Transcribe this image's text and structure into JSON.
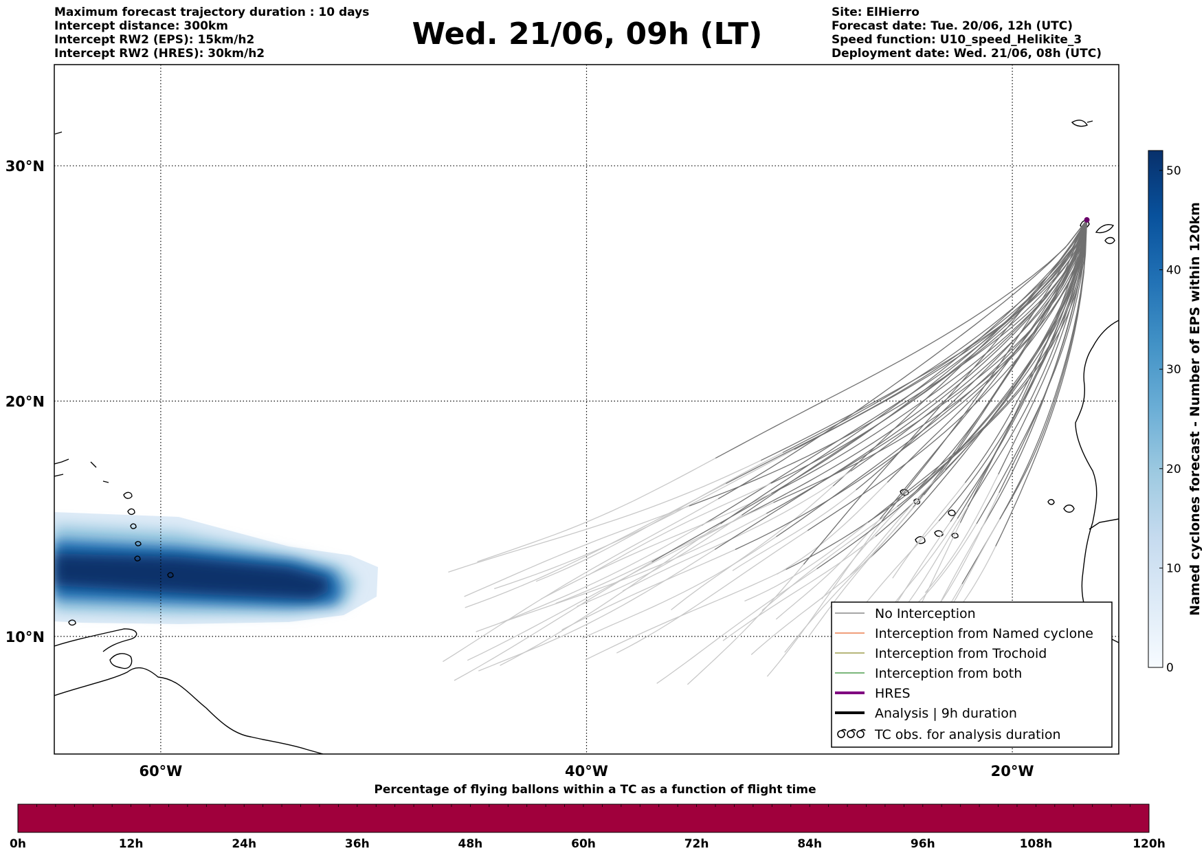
{
  "header": {
    "left_lines": [
      "Maximum forecast trajectory duration : 10 days",
      "Intercept distance: 300km",
      "Intercept RW2 (EPS):  15km/h2",
      "Intercept RW2 (HRES): 30km/h2"
    ],
    "title": "Wed. 21/06, 09h (LT)",
    "right_lines": [
      "Site: ElHierro",
      "Forecast date: Tue. 20/06, 12h (UTC)",
      "Speed function: U10_speed_Helikite_3",
      "Deployment date: Wed. 21/06, 08h (UTC)"
    ]
  },
  "map": {
    "lon_range": [
      -65,
      -15
    ],
    "lat_range": [
      5,
      34.3
    ],
    "lat_labels": [
      {
        "lat": 30,
        "text": "30°N"
      },
      {
        "lat": 20,
        "text": "20°N"
      },
      {
        "lat": 10,
        "text": "10°N"
      }
    ],
    "lon_labels": [
      {
        "lon": -60,
        "text": "60°W"
      },
      {
        "lon": -40,
        "text": "40°W"
      },
      {
        "lon": -20,
        "text": "20°W"
      }
    ],
    "site": {
      "lon": -16.5,
      "lat": 27.7
    },
    "colors": {
      "no_interception_dark": "#707070",
      "no_interception_light": "#c8c8c8",
      "named_cyclone": "#e8632a",
      "trochoid": "#8a8a2a",
      "both": "#2a8a2a",
      "hres": "#800080",
      "analysis": "#000000"
    }
  },
  "colorbar": {
    "label": "Named cyclones forecast - Number of EPS within 120km",
    "min": 0,
    "max": 52,
    "ticks": [
      "0",
      "10",
      "20",
      "30",
      "40",
      "50"
    ],
    "colors": [
      "#f7fbff",
      "#deebf7",
      "#c6dbef",
      "#9ecae1",
      "#6baed6",
      "#4292c6",
      "#2171b5",
      "#08519c",
      "#08306b"
    ]
  },
  "legend": {
    "items": [
      {
        "label": "No Interception",
        "color": "#707070",
        "width": 1.2,
        "kind": "line"
      },
      {
        "label": "Interception from Named cyclone",
        "color": "#e8632a",
        "width": 1.2,
        "kind": "line"
      },
      {
        "label": "Interception from Trochoid",
        "color": "#8a8a2a",
        "width": 1.2,
        "kind": "line"
      },
      {
        "label": "Interception from both",
        "color": "#2a8a2a",
        "width": 1.2,
        "kind": "line"
      },
      {
        "label": "HRES",
        "color": "#800080",
        "width": 4,
        "kind": "line"
      },
      {
        "label": "Analysis | 9h duration",
        "color": "#000000",
        "width": 4,
        "kind": "line"
      },
      {
        "label": "TC obs. for analysis duration",
        "color": "#000000",
        "width": 1,
        "kind": "tc"
      }
    ]
  },
  "bottom_bar": {
    "title": "Percentage of flying ballons within a TC as a function of flight time",
    "ticks": [
      "0h",
      "12h",
      "24h",
      "36h",
      "48h",
      "60h",
      "72h",
      "84h",
      "96h",
      "108h",
      "120h"
    ],
    "fill_color": "#a0003c"
  }
}
